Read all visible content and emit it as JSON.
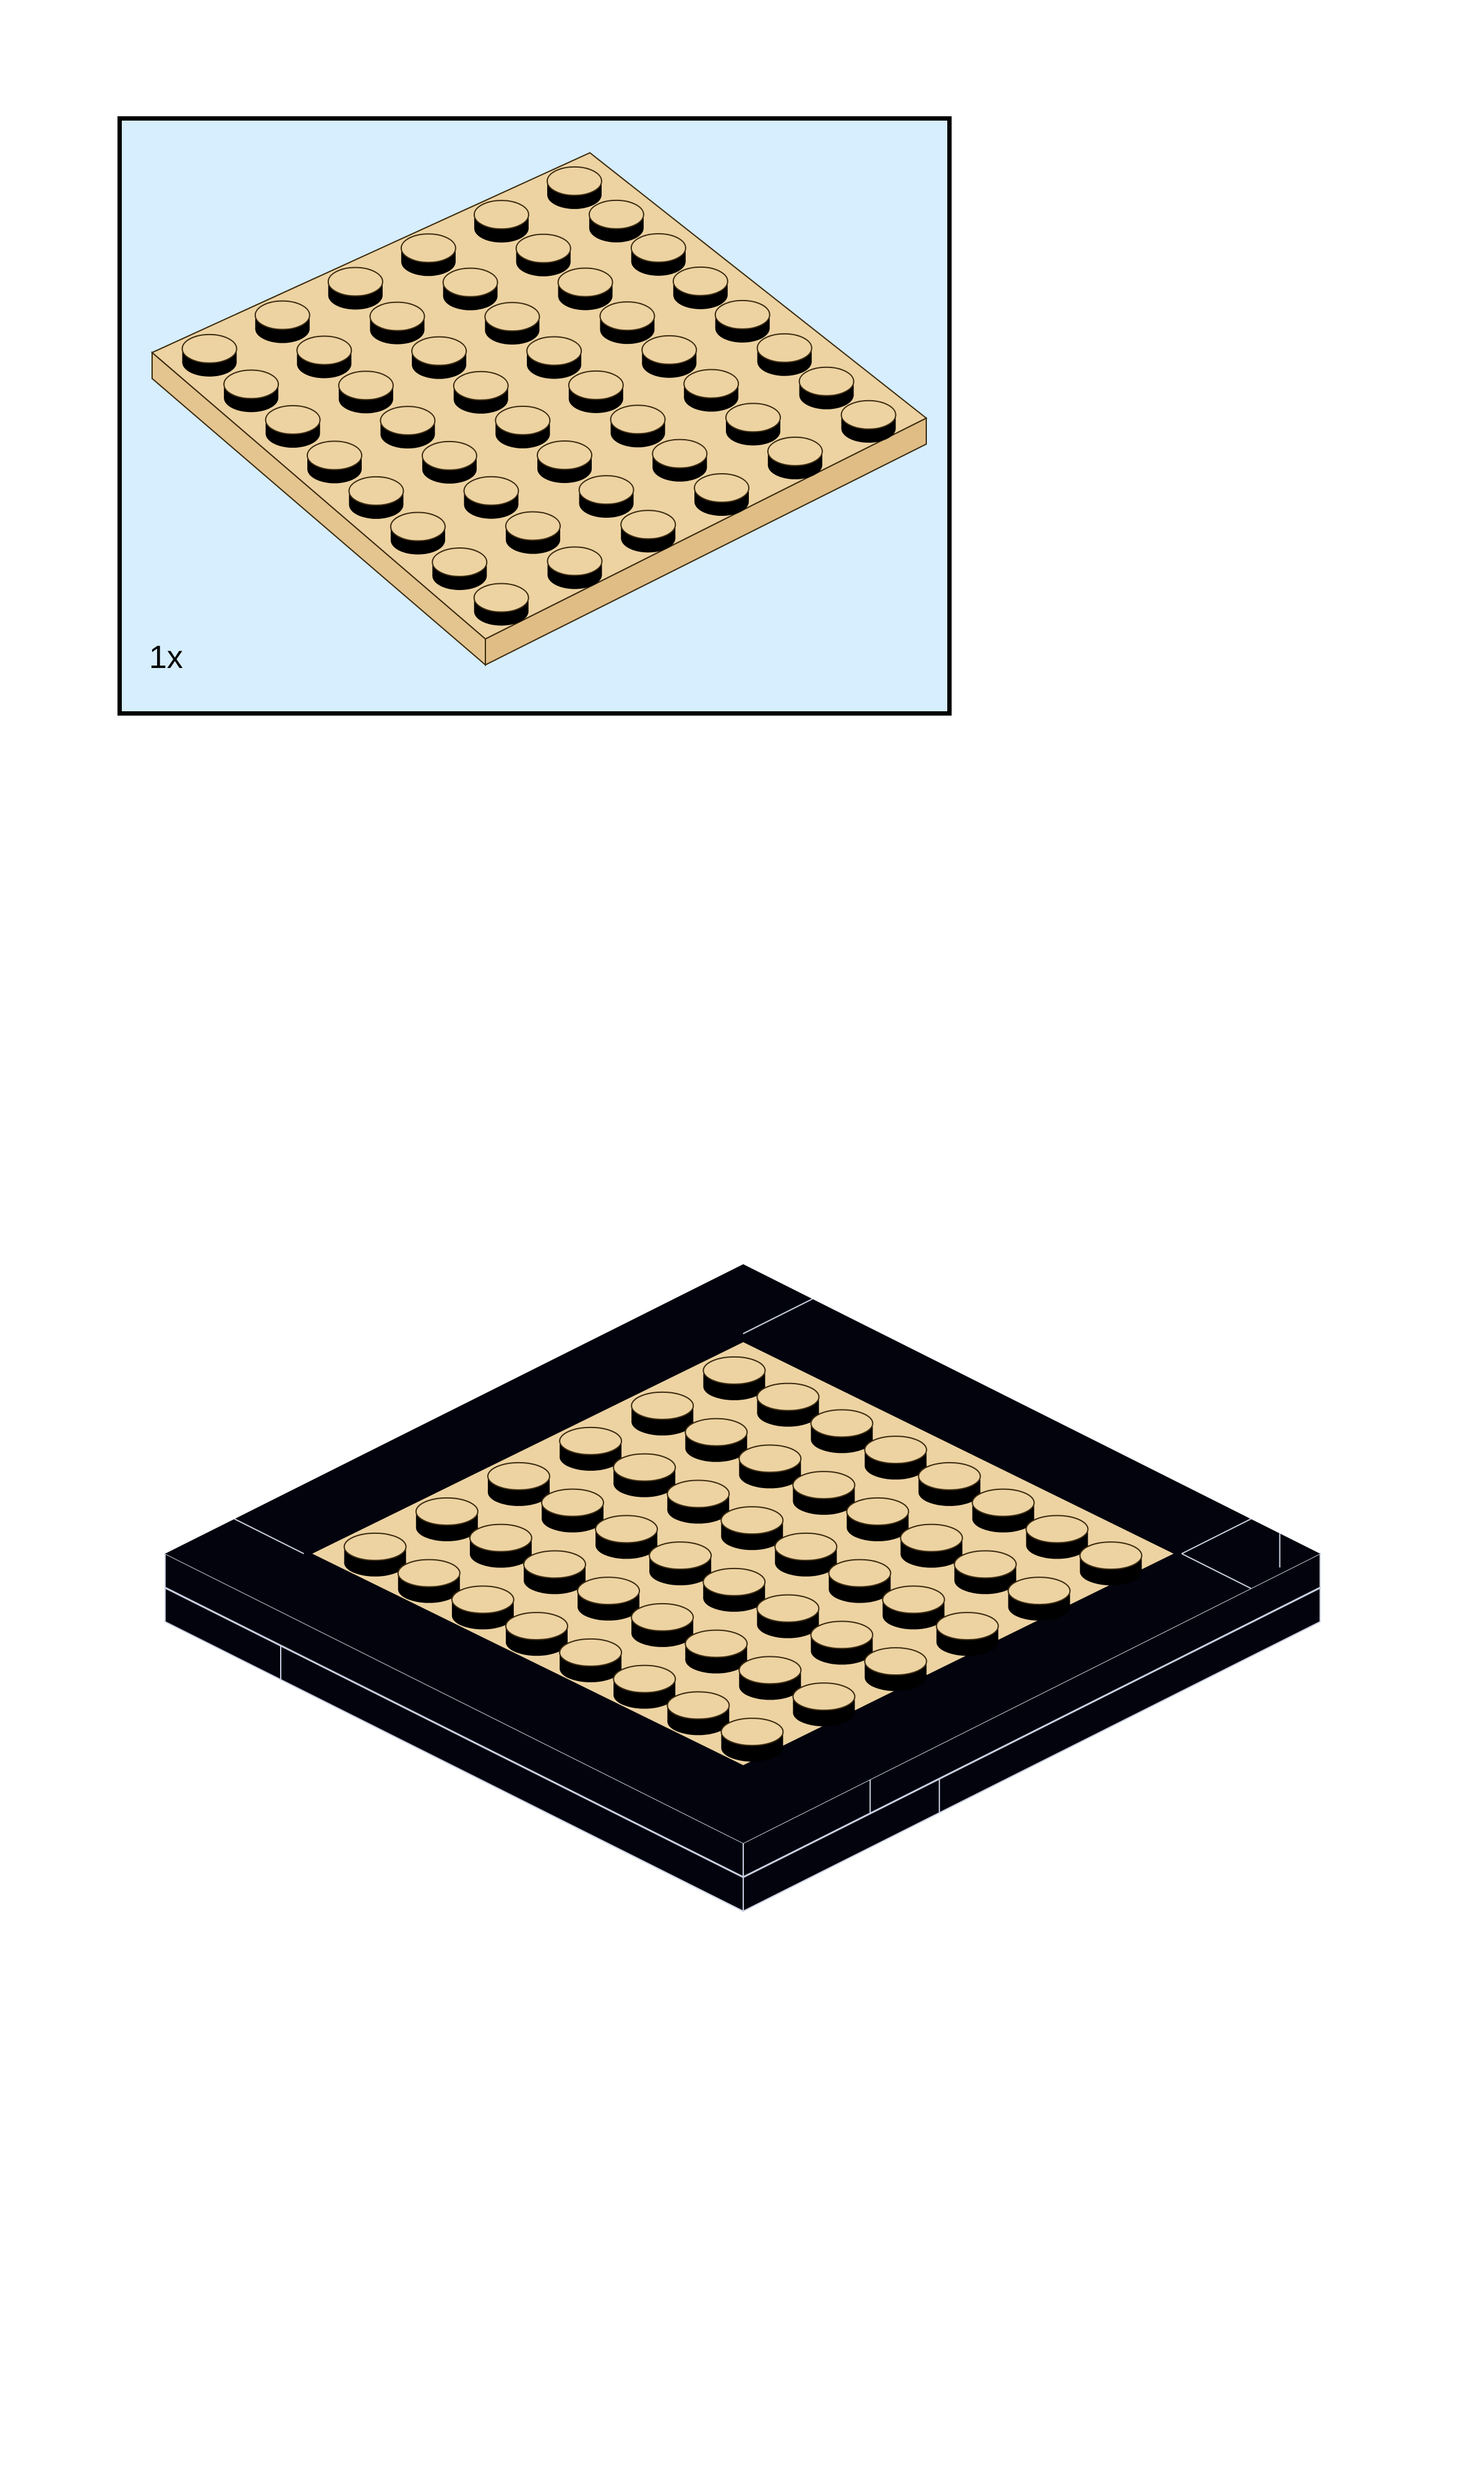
{
  "page": {
    "background": "#ffffff"
  },
  "parts_callout": {
    "background": "#d6eefd",
    "border_color": "#000000",
    "items": [
      {
        "part": "plate 6x8",
        "icon": "tan-plate-6x8-icon",
        "color": "#edd3a2",
        "studs": [
          6,
          8
        ],
        "quantity_label": "1x"
      }
    ]
  },
  "assembly": {
    "icon": "assembled-model-icon",
    "frame_color": "#02030d",
    "plate_color": "#edd3a2",
    "studs": [
      6,
      8
    ]
  }
}
